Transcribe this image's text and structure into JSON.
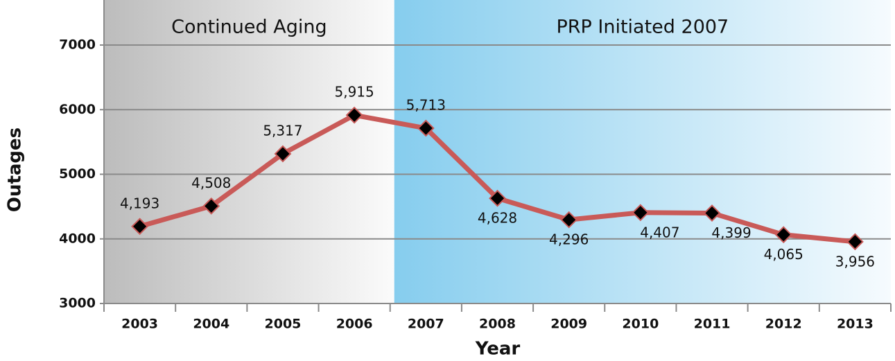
{
  "chart_data": {
    "type": "line",
    "annotations": [
      "Continued Aging",
      "PRP Initiated 2007"
    ],
    "x_label": "Year",
    "y_label": "Outages",
    "categories": [
      "2003",
      "2004",
      "2005",
      "2006",
      "2007",
      "2008",
      "2009",
      "2010",
      "2011",
      "2012",
      "2013"
    ],
    "series": [
      {
        "name": "Outages",
        "color": "#c95a58",
        "values": [
          4193,
          4508,
          5317,
          5915,
          5713,
          4628,
          4296,
          4407,
          4399,
          4065,
          3956
        ],
        "value_labels": [
          "4,193",
          "4,508",
          "5,317",
          "5,915",
          "5,713",
          "4,628",
          "4,296",
          "4,407",
          "4,399",
          "4,065",
          "3,956"
        ]
      }
    ],
    "ylim": [
      3000,
      7000
    ],
    "yticks": [
      3000,
      4000,
      5000,
      6000,
      7000
    ],
    "grid": true
  }
}
